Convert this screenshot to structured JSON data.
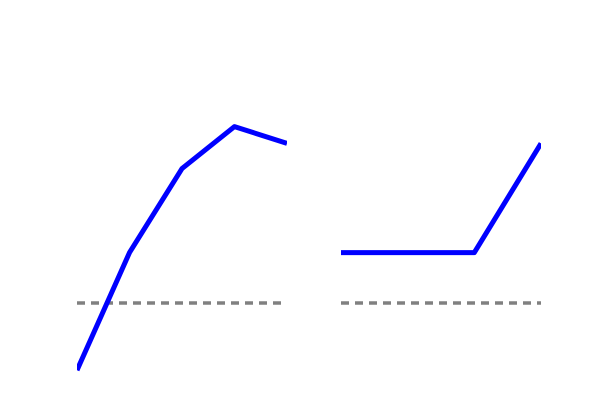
{
  "chart_data": [
    {
      "type": "line",
      "title": "",
      "xlabel": "",
      "ylabel": "",
      "x": [
        0,
        1,
        2,
        3,
        4
      ],
      "series": [
        {
          "values": [
            -0.8,
            0.6,
            1.6,
            2.1,
            1.9
          ],
          "color": "#0000ff"
        }
      ],
      "reference_lines": [
        {
          "y": 0,
          "style": "dashed",
          "color": "#808080"
        }
      ],
      "xlim": [
        0,
        4
      ],
      "ylim": [
        -1,
        3
      ],
      "grid": false,
      "axes_visible": false
    },
    {
      "type": "line",
      "title": "",
      "xlabel": "",
      "ylabel": "",
      "x": [
        0,
        1,
        2,
        3
      ],
      "series": [
        {
          "values": [
            0.6,
            0.6,
            0.6,
            1.9
          ],
          "color": "#0000ff"
        }
      ],
      "reference_lines": [
        {
          "y": 0,
          "style": "dashed",
          "color": "#808080"
        }
      ],
      "xlim": [
        0,
        3
      ],
      "ylim": [
        -1,
        3
      ],
      "grid": false,
      "axes_visible": false
    }
  ]
}
